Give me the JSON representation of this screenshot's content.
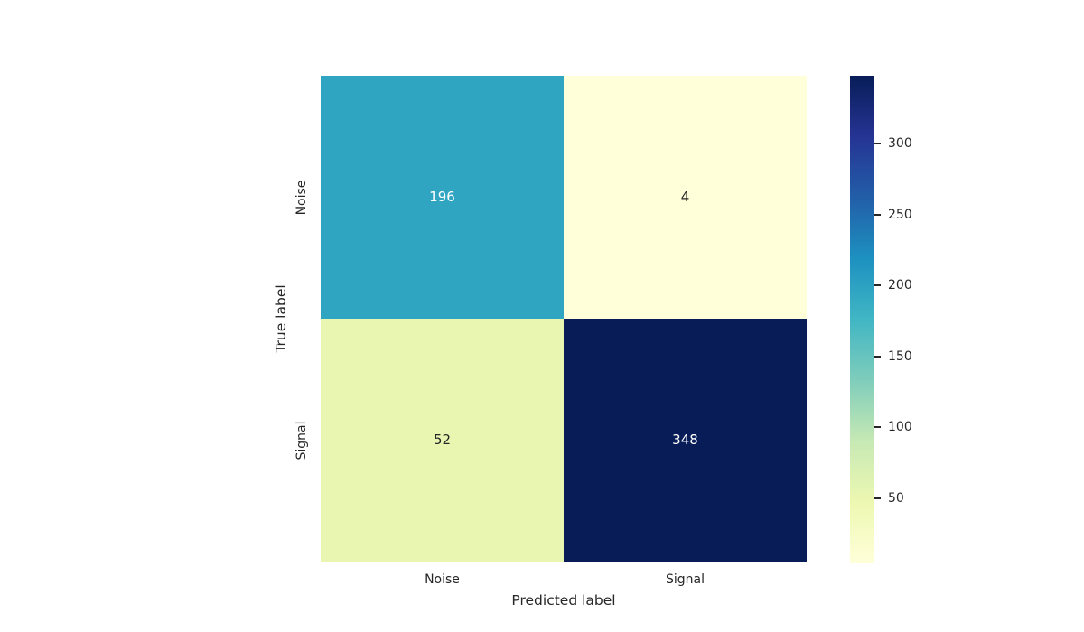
{
  "chart_data": {
    "type": "heatmap",
    "title": "",
    "xlabel": "Predicted label",
    "ylabel": "True label",
    "x_categories": [
      "Noise",
      "Signal"
    ],
    "y_categories": [
      "Noise",
      "Signal"
    ],
    "values": [
      [
        196,
        4
      ],
      [
        52,
        348
      ]
    ],
    "vmin": 4,
    "vmax": 348,
    "colormap": "YlGnBu",
    "grid": false,
    "legend_position": "colorbar-right",
    "colorbar_tick_values": [
      50,
      100,
      150,
      200,
      250,
      300
    ],
    "annotation_color_light": "#ffffff",
    "annotation_color_dark": "#262626"
  },
  "colors": {
    "background": "#ffffff",
    "tick_text": "#262626",
    "colormap_stops": [
      "#ffffd9",
      "#edf8b1",
      "#c7e9b4",
      "#7fcdbb",
      "#41b6c4",
      "#1d91c0",
      "#225ea8",
      "#253494",
      "#081d58"
    ]
  }
}
